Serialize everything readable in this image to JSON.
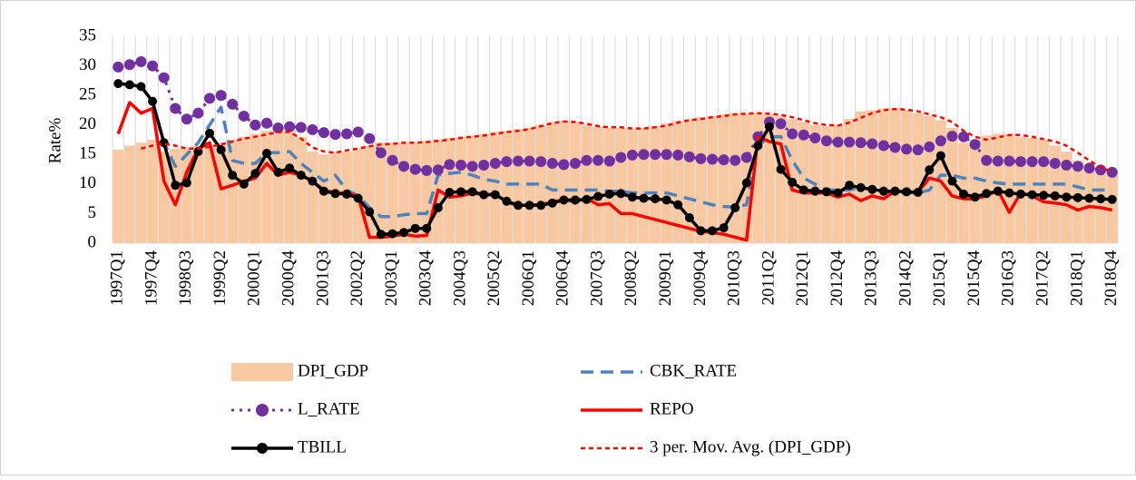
{
  "chart_data": {
    "type": "combo",
    "y_label": "Rate%",
    "ylim": [
      0,
      35
    ],
    "yticks": [
      0,
      5,
      10,
      15,
      20,
      25,
      30,
      35
    ],
    "grid": "vertical",
    "categories": [
      "1997Q1",
      null,
      null,
      "1997Q4",
      null,
      null,
      "1998Q3",
      null,
      null,
      "1999Q2",
      null,
      null,
      "2000Q1",
      null,
      null,
      "2000Q4",
      null,
      null,
      "2001Q3",
      null,
      null,
      "2002Q2",
      null,
      null,
      "2003Q1",
      null,
      null,
      "2003Q4",
      null,
      null,
      "2004Q3",
      null,
      null,
      "2005Q2",
      null,
      null,
      "2006Q1",
      null,
      null,
      "2006Q4",
      null,
      null,
      "2007Q3",
      null,
      null,
      "2008Q2",
      null,
      null,
      "2009Q1",
      null,
      null,
      "2009Q4",
      null,
      null,
      "2010Q3",
      null,
      null,
      "2011Q2",
      null,
      null,
      "2012Q1",
      null,
      null,
      "2012Q4",
      null,
      null,
      "2013Q3",
      null,
      null,
      "2014Q2",
      null,
      null,
      "2015Q1",
      null,
      null,
      "2015Q4",
      null,
      null,
      "2016Q3",
      null,
      null,
      "2017Q2",
      null,
      null,
      "2018Q1",
      null,
      null,
      "2018Q4"
    ],
    "series": [
      {
        "name": "DPI_GDP",
        "kind": "bar",
        "color": "#f8c9a0",
        "values": [
          15.8,
          16.5,
          17,
          17.5,
          15.5,
          16,
          16.2,
          16.5,
          16.5,
          17,
          17.5,
          18,
          18.5,
          19,
          19.5,
          19.5,
          18,
          15.5,
          15,
          15.5,
          15.5,
          16,
          16.5,
          17,
          17,
          17,
          17,
          17.3,
          17.5,
          17.8,
          18,
          18.2,
          18.5,
          18.8,
          19,
          19.3,
          19.5,
          20,
          20.5,
          20.7,
          20.5,
          20,
          19.7,
          19.5,
          19.5,
          19.3,
          19.5,
          19.8,
          20.3,
          20.7,
          21,
          21.3,
          21.5,
          21.8,
          22,
          22,
          22,
          21.8,
          21.5,
          21,
          20.5,
          20,
          19.8,
          20,
          21,
          22.3,
          22.5,
          22.8,
          22.8,
          22.5,
          22,
          21.5,
          20.8,
          19.5,
          17,
          17.5,
          18.2,
          18.5,
          18.5,
          18,
          17.8,
          17.5,
          16.5,
          15.5,
          14,
          12.8,
          12,
          11.5
        ]
      },
      {
        "name": "CBK_RATE",
        "kind": "line",
        "dash": "14,8",
        "width": 3.5,
        "color": "#4f81bd",
        "values": [
          27,
          26.8,
          26.5,
          24,
          17,
          13,
          15,
          17,
          20,
          23,
          14,
          13.5,
          13.5,
          15.3,
          15.3,
          15.5,
          13.5,
          12,
          10.5,
          11.5,
          9,
          8,
          6,
          4.5,
          4.5,
          4.8,
          5,
          5,
          11.5,
          11.8,
          12,
          11.5,
          10.8,
          10.5,
          10,
          10,
          10,
          10,
          9,
          9,
          9,
          9,
          9,
          8.8,
          8.8,
          8.5,
          8.5,
          8.5,
          8.5,
          8,
          7.5,
          7,
          6.5,
          6.2,
          6.1,
          6.5,
          16.5,
          18,
          18,
          14,
          11,
          10,
          9,
          9,
          9,
          9.5,
          9,
          8.8,
          8.5,
          8.5,
          8.5,
          9,
          11.5,
          11.5,
          11,
          11,
          10.5,
          10.2,
          10,
          10,
          10,
          10,
          10,
          10,
          9.5,
          9,
          9,
          9
        ]
      },
      {
        "name": "L_RATE",
        "kind": "line",
        "dash": "3,6",
        "width": 3,
        "marker": 6,
        "color": "#7030a0",
        "values": [
          29.8,
          30.2,
          30.7,
          30,
          28,
          22.8,
          21,
          22,
          24.5,
          25,
          23.5,
          21.5,
          20,
          20.3,
          19.5,
          19.7,
          19.6,
          19.2,
          18.7,
          18.4,
          18.5,
          18.8,
          17.7,
          15.3,
          14,
          13,
          12.5,
          12.3,
          12.4,
          13.3,
          13.2,
          13,
          13.2,
          13.5,
          13.8,
          13.9,
          13.9,
          13.8,
          13.5,
          13.3,
          13.5,
          14,
          14,
          13.9,
          14.5,
          14.9,
          15,
          15,
          15,
          14.9,
          14.6,
          14.3,
          14.2,
          14.1,
          14,
          14.5,
          18,
          20.5,
          20.2,
          18.5,
          18.3,
          17.8,
          17.3,
          17.1,
          17.1,
          17,
          16.8,
          16.5,
          16.2,
          15.9,
          15.8,
          16.3,
          17.3,
          18.1,
          18,
          16.7,
          14,
          13.9,
          13.9,
          13.8,
          13.8,
          13.8,
          13.5,
          13.2,
          13,
          12.7,
          12.4,
          12
        ]
      },
      {
        "name": "REPO",
        "kind": "line",
        "width": 3.5,
        "color": "#ff0000",
        "values": [
          18.5,
          23.8,
          22,
          22.8,
          10.5,
          6.5,
          12,
          16,
          17,
          9.2,
          9.8,
          10.5,
          11,
          13.5,
          11.5,
          12,
          11.5,
          10.5,
          9,
          8.5,
          8.5,
          8,
          1,
          1,
          1.2,
          1.5,
          1.2,
          1.3,
          9,
          7.8,
          8,
          8.5,
          8.2,
          8.3,
          7,
          6.3,
          6.5,
          6.5,
          7,
          7.3,
          7,
          7.6,
          6.5,
          6.7,
          5,
          5,
          4.5,
          4,
          3.5,
          3,
          2.5,
          2,
          1.8,
          1.5,
          1,
          0.5,
          18,
          17.2,
          16.8,
          9,
          8.5,
          8.5,
          8.5,
          7.8,
          8.3,
          7.2,
          8,
          7.5,
          8.8,
          8.7,
          8.6,
          11,
          10.5,
          8,
          7.5,
          7.5,
          8,
          9,
          5.2,
          8.5,
          8,
          7,
          6.8,
          6.5,
          5.6,
          6.2,
          6,
          5.6
        ]
      },
      {
        "name": "TBILL",
        "kind": "line",
        "width": 3.5,
        "marker": 5,
        "color": "#000000",
        "values": [
          27,
          26.8,
          26.5,
          24,
          17,
          9.8,
          10.2,
          15.5,
          18.6,
          15.8,
          11.5,
          10,
          11.8,
          15.2,
          12,
          12.7,
          11.5,
          10.5,
          8.8,
          8.4,
          8.3,
          7.6,
          5.3,
          1.5,
          1.6,
          1.8,
          2.5,
          2.5,
          6,
          8.6,
          8.7,
          8.7,
          8.2,
          8.2,
          7.1,
          6.4,
          6.4,
          6.4,
          6.8,
          7.3,
          7.3,
          7.4,
          7.9,
          8.3,
          8.4,
          7.8,
          7.6,
          7.5,
          7.3,
          6.5,
          4.3,
          2.1,
          2.1,
          2.6,
          6,
          10.2,
          16.5,
          19.7,
          12.5,
          10.3,
          9,
          8.8,
          8.7,
          8.5,
          9.8,
          9.4,
          9.1,
          8.8,
          8.8,
          8.7,
          8.6,
          12.4,
          14.8,
          10.5,
          8.3,
          7.8,
          8.4,
          8.8,
          8.5,
          8.3,
          8.2,
          8.1,
          8,
          7.8,
          7.7,
          7.6,
          7.5,
          7.4
        ]
      },
      {
        "name": "3 per. Mov. Avg. (DPI_GDP)",
        "kind": "line",
        "dash": "5,4",
        "width": 2.5,
        "color": "#ff0000",
        "values": [
          null,
          null,
          16,
          16.5,
          16.8,
          16.5,
          16,
          16,
          16.3,
          16.7,
          17.2,
          17.7,
          18,
          18.4,
          18.8,
          18.8,
          17.7,
          16.2,
          15.5,
          15.3,
          15.7,
          16,
          16.4,
          16.7,
          16.8,
          17,
          17,
          17.1,
          17.3,
          17.5,
          17.8,
          18,
          18.2,
          18.5,
          18.8,
          19,
          19.3,
          19.8,
          20.3,
          20.6,
          20.5,
          20.2,
          19.8,
          19.6,
          19.6,
          19.4,
          19.4,
          19.6,
          19.9,
          20.4,
          20.8,
          21,
          21.3,
          21.5,
          21.8,
          21.9,
          22,
          21.9,
          21.7,
          21.3,
          20.8,
          20.3,
          20,
          19.9,
          20.4,
          21.2,
          22,
          22.5,
          22.7,
          22.6,
          22.3,
          21.8,
          21.3,
          20.5,
          19,
          18,
          17.5,
          17.9,
          18.3,
          18.3,
          18,
          17.6,
          17.2,
          16.5,
          15.3,
          14,
          12.8,
          12.1
        ]
      }
    ]
  }
}
